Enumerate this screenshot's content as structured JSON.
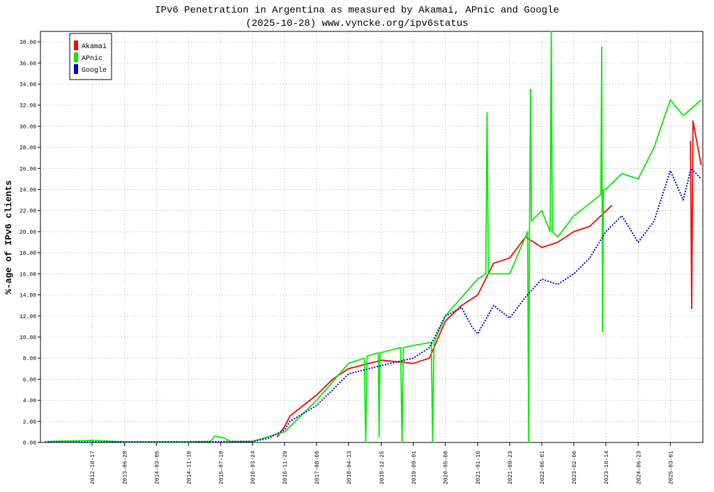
{
  "chart_data": {
    "type": "line",
    "title": "IPv6 Penetration in Argentina as measured by Akamai, APnic and Google",
    "subtitle": "(2025-10-28) www.vyncke.org/ipv6status",
    "y_label": "%-age of IPv6 clients",
    "xlim": [
      "2011-09-10",
      "2025-11-10"
    ],
    "xticks": [
      "2012-10-17",
      "2013-06-28",
      "2014-03-05",
      "2014-11-10",
      "2015-07-18",
      "2016-03-24",
      "2016-11-29",
      "2017-08-06",
      "2018-04-13",
      "2018-12-25",
      "2019-09-01",
      "2020-05-08",
      "2021-01-16",
      "2021-09-23",
      "2022-06-01",
      "2023-02-06",
      "2023-10-14",
      "2024-06-23",
      "2025-03-01"
    ],
    "ylim": [
      0,
      39
    ],
    "yticks": [
      {
        "value": 0,
        "label": "0.00"
      },
      {
        "value": 2,
        "label": "2.00"
      },
      {
        "value": 4,
        "label": "4.00"
      },
      {
        "value": 6,
        "label": "6.00"
      },
      {
        "value": 8,
        "label": "8.00"
      },
      {
        "value": 10,
        "label": "10.00"
      },
      {
        "value": 12,
        "label": "12.00"
      },
      {
        "value": 14,
        "label": "14.00"
      },
      {
        "value": 16,
        "label": "16.00"
      },
      {
        "value": 18,
        "label": "18.00"
      },
      {
        "value": 20,
        "label": "20.00"
      },
      {
        "value": 22,
        "label": "22.00"
      },
      {
        "value": 24,
        "label": "24.00"
      },
      {
        "value": 26,
        "label": "26.00"
      },
      {
        "value": 28,
        "label": "28.00"
      },
      {
        "value": 30,
        "label": "30.00"
      },
      {
        "value": 32,
        "label": "32.00"
      },
      {
        "value": 34,
        "label": "34.00"
      },
      {
        "value": 36,
        "label": "36.00"
      },
      {
        "value": 38,
        "label": "38.00"
      }
    ],
    "grid": true,
    "legend": "upper left",
    "series": [
      {
        "name": "Akamai",
        "color": "#ff0000",
        "dash": false,
        "x": [
          "2016-10-01",
          "2016-11-29",
          "2017-01-10",
          "2017-08-06",
          "2017-12-10",
          "2018-04-13",
          "2018-12-25",
          "2019-09-01",
          "2020-01-05",
          "2020-05-08",
          "2020-09-12",
          "2021-01-16",
          "2021-05-20",
          "2021-09-23",
          "2022-01-25",
          "2022-06-01",
          "2022-10-03",
          "2023-02-06",
          "2023-06-10",
          "2023-12-01",
          "2024-06-23",
          "2025-08-05",
          "2025-08-15",
          "2025-08-25",
          "2025-10-28"
        ],
        "values": [
          0.5,
          1.5,
          2.5,
          4.5,
          6.0,
          7.0,
          7.8,
          7.5,
          8.0,
          11.5,
          13.0,
          14.0,
          17.0,
          17.5,
          19.5,
          18.5,
          19.0,
          20.0,
          20.5,
          22.5,
          null,
          28.6,
          12.7,
          30.5,
          26.3
        ]
      },
      {
        "name": "APnic",
        "color": "#00ee00",
        "dash": false,
        "x": [
          "2011-11-01",
          "2012-10-17",
          "2013-06-28",
          "2014-11-10",
          "2015-05-01",
          "2015-06-01",
          "2015-08-20",
          "2015-10-01",
          "2016-03-24",
          "2016-11-29",
          "2017-08-06",
          "2018-04-13",
          "2018-08-15",
          "2018-08-25",
          "2018-09-05",
          "2018-12-01",
          "2018-12-08",
          "2018-12-15",
          "2019-05-25",
          "2019-06-05",
          "2019-06-15",
          "2019-09-01",
          "2020-01-20",
          "2020-01-30",
          "2020-02-10",
          "2020-05-08",
          "2021-01-16",
          "2021-03-20",
          "2021-03-30",
          "2021-04-10",
          "2021-09-23",
          "2022-02-10",
          "2022-02-18",
          "2022-02-25",
          "2022-03-05",
          "2022-03-12",
          "2022-06-01",
          "2022-08-05",
          "2022-08-14",
          "2022-08-22",
          "2022-10-03",
          "2023-02-06",
          "2023-09-05",
          "2023-09-12",
          "2023-09-18",
          "2023-09-25",
          "2023-10-14",
          "2024-02-16",
          "2024-06-23",
          "2024-10-25",
          "2025-03-01",
          "2025-06-10",
          "2025-10-28"
        ],
        "values": [
          0.1,
          0.2,
          0.05,
          0.05,
          0.1,
          0.6,
          0.4,
          0.1,
          0.1,
          1.0,
          4.0,
          7.5,
          8.0,
          0.0,
          8.2,
          8.5,
          0.5,
          8.5,
          9.0,
          0.0,
          9.0,
          9.2,
          9.5,
          0.0,
          9.5,
          12.0,
          15.5,
          16.0,
          31.3,
          16.0,
          16.0,
          20.0,
          0.0,
          20.0,
          33.5,
          21.0,
          22.0,
          20.0,
          39.0,
          20.0,
          19.5,
          21.5,
          23.5,
          37.5,
          10.5,
          24.0,
          24.0,
          25.5,
          25.0,
          28.0,
          32.5,
          31.0,
          32.5
        ]
      },
      {
        "name": "Google",
        "color": "#0000dd",
        "dash": true,
        "x": [
          "2011-10-15",
          "2012-10-17",
          "2014-03-05",
          "2015-07-18",
          "2016-03-24",
          "2016-07-26",
          "2016-11-29",
          "2017-01-10",
          "2017-08-06",
          "2017-12-10",
          "2018-04-13",
          "2018-12-25",
          "2019-09-01",
          "2020-01-05",
          "2020-05-08",
          "2020-09-12",
          "2020-12-01",
          "2021-01-16",
          "2021-05-20",
          "2021-09-23",
          "2022-01-25",
          "2022-06-01",
          "2022-10-03",
          "2023-02-06",
          "2023-06-10",
          "2023-10-14",
          "2024-02-16",
          "2024-06-23",
          "2024-10-25",
          "2025-03-01",
          "2025-06-10",
          "2025-08-10",
          "2025-10-28"
        ],
        "values": [
          0.05,
          0.05,
          0.06,
          0.08,
          0.1,
          0.4,
          1.2,
          2.0,
          3.5,
          5.0,
          6.5,
          7.3,
          8.0,
          9.0,
          12.0,
          12.8,
          11.0,
          10.3,
          13.0,
          11.8,
          13.8,
          15.5,
          15.0,
          16.0,
          17.5,
          20.0,
          21.5,
          19.0,
          21.0,
          25.8,
          23.0,
          26.0,
          25.0
        ]
      }
    ]
  }
}
